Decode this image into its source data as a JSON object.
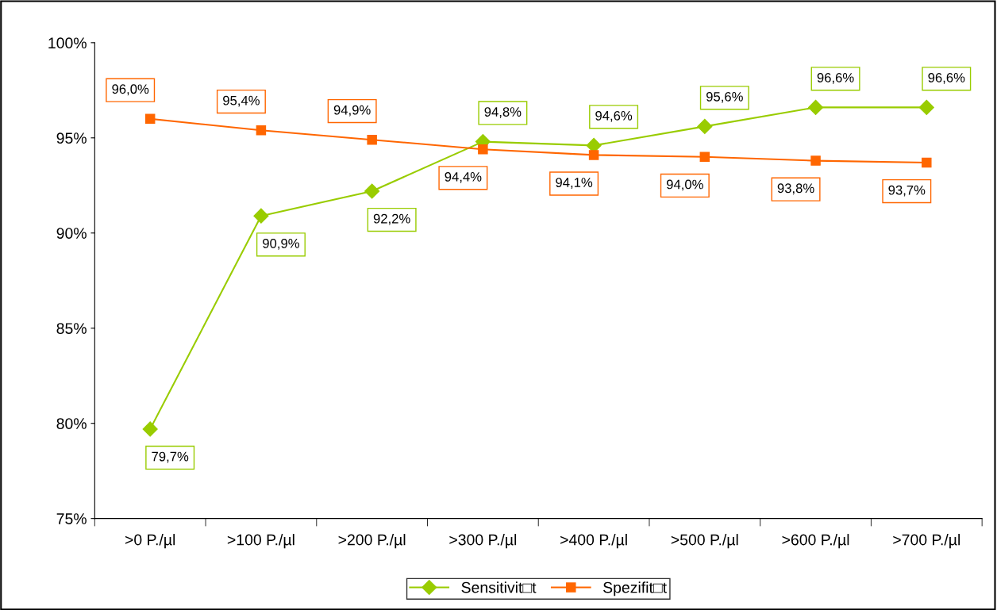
{
  "chart_data": {
    "type": "line",
    "categories": [
      ">0 P./µl",
      ">100 P./µl",
      ">200 P./µl",
      ">300 P./µl",
      ">400 P./µl",
      ">500 P./µl",
      ">600 P./µl",
      ">700 P./µl"
    ],
    "series": [
      {
        "name": "Sensitivit□t",
        "color": "#99cc00",
        "marker": "diamond",
        "values": [
          79.7,
          90.9,
          92.2,
          94.8,
          94.6,
          95.6,
          96.6,
          96.6
        ],
        "value_labels": [
          "79,7%",
          "90,9%",
          "92,2%",
          "94,8%",
          "94,6%",
          "95,6%",
          "96,6%",
          "96,6%"
        ]
      },
      {
        "name": "Spezifit□t",
        "color": "#ff6600",
        "marker": "square",
        "values": [
          96.0,
          95.4,
          94.9,
          94.4,
          94.1,
          94.0,
          93.8,
          93.7
        ],
        "value_labels": [
          "96,0%",
          "95,4%",
          "94,9%",
          "94,4%",
          "94,1%",
          "94,0%",
          "93,8%",
          "93,7%"
        ]
      }
    ],
    "ylim": [
      75,
      100
    ],
    "yticks": [
      {
        "value": 75,
        "label": "75%"
      },
      {
        "value": 80,
        "label": "80%"
      },
      {
        "value": 85,
        "label": "85%"
      },
      {
        "value": 90,
        "label": "90%"
      },
      {
        "value": 95,
        "label": "95%"
      },
      {
        "value": 100,
        "label": "100%"
      }
    ],
    "grid": false,
    "legend": "bottom",
    "line_style": "solid"
  }
}
